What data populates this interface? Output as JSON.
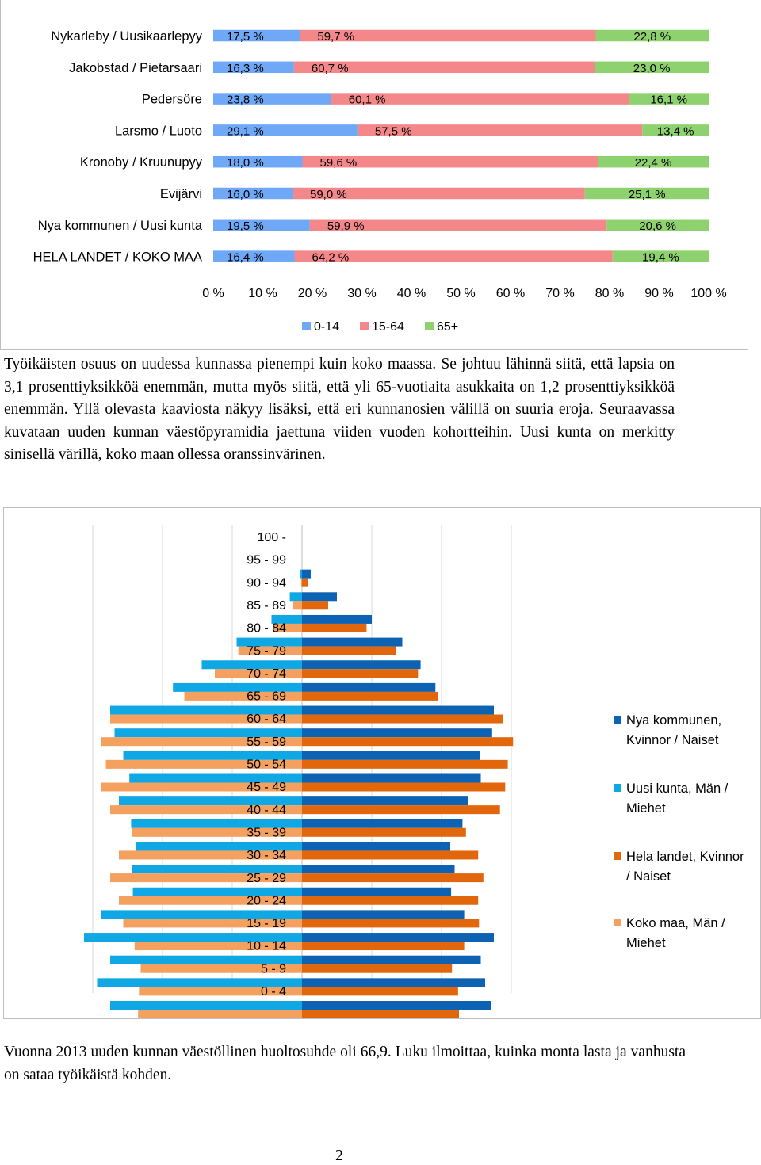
{
  "chart_data": [
    {
      "type": "bar",
      "orientation": "horizontal",
      "stacked": "percent",
      "categories": [
        "Nykarleby / Uusikaarlepyy",
        "Jakobstad / Pietarsaari",
        "Pedersöre",
        "Larsmo / Luoto",
        "Kronoby / Kruunupyy",
        "Evijärvi",
        "Nya kommunen / Uusi kunta",
        "HELA LANDET / KOKO MAA"
      ],
      "series": [
        {
          "name": "0-14",
          "color": "#6fa8f6",
          "values": [
            17.5,
            16.3,
            23.8,
            29.1,
            18.0,
            16.0,
            19.5,
            16.4
          ],
          "labels": [
            "17,5 %",
            "16,3 %",
            "23,8 %",
            "29,1 %",
            "18,0 %",
            "16,0 %",
            "19,5 %",
            "16,4 %"
          ]
        },
        {
          "name": "15-64",
          "color": "#f4878a",
          "values": [
            59.7,
            60.7,
            60.1,
            57.5,
            59.6,
            59.0,
            59.9,
            64.2
          ],
          "labels": [
            "59,7 %",
            "60,7 %",
            "60,1 %",
            "57,5 %",
            "59,6 %",
            "59,0 %",
            "59,9 %",
            "64,2 %"
          ]
        },
        {
          "name": "65+",
          "color": "#8ed16f",
          "values": [
            22.8,
            23.0,
            16.1,
            13.4,
            22.4,
            25.1,
            20.6,
            19.4
          ],
          "labels": [
            "22,8 %",
            "23,0 %",
            "16,1 %",
            "13,4 %",
            "22,4 %",
            "25,1 %",
            "20,6 %",
            "19,4 %"
          ]
        }
      ],
      "xticks": [
        "0 %",
        "10 %",
        "20 %",
        "30 %",
        "40 %",
        "50 %",
        "60 %",
        "70 %",
        "80 %",
        "90 %",
        "100 %"
      ],
      "xlim": [
        0,
        100
      ],
      "legend": "bottom",
      "grid": false
    },
    {
      "type": "bar",
      "orientation": "horizontal",
      "subtype": "population-pyramid",
      "categories": [
        "100 -",
        "95 - 99",
        "90 - 94",
        "85 - 89",
        "80 - 84",
        "75 - 79",
        "70 - 74",
        "65 - 69",
        "60 - 64",
        "55 - 59",
        "50 - 54",
        "45 - 49",
        "40 - 44",
        "35 - 39",
        "30 - 34",
        "25 - 29",
        "20 - 24",
        "15 - 19",
        "10 - 14",
        "5 - 9",
        "0 - 4"
      ],
      "series": [
        {
          "name": "Nya kommunen, Kvinnor / Naiset",
          "color": "#0d62b3",
          "side": "right",
          "values": [
            0.0,
            0.1,
            0.4,
            0.8,
            1.15,
            1.36,
            1.53,
            2.2,
            2.18,
            2.04,
            2.05,
            1.9,
            1.84,
            1.7,
            1.75,
            1.71,
            1.86,
            2.2,
            2.05,
            2.1,
            2.17
          ]
        },
        {
          "name": "Uusi kunta, Män / Miehet",
          "color": "#10a8e4",
          "side": "left",
          "values": [
            0.0,
            0.02,
            0.14,
            0.35,
            0.75,
            1.15,
            1.48,
            2.2,
            2.15,
            2.05,
            1.98,
            2.1,
            1.96,
            1.9,
            1.95,
            1.94,
            2.3,
            2.5,
            2.2,
            2.35,
            2.2
          ]
        },
        {
          "name": "Hela landet, Kvinnor / Naiset",
          "color": "#e2670c",
          "side": "right",
          "values": [
            0.0,
            0.07,
            0.3,
            0.74,
            1.08,
            1.33,
            1.56,
            2.3,
            2.42,
            2.36,
            2.33,
            2.27,
            1.88,
            2.02,
            2.08,
            2.02,
            2.03,
            1.86,
            1.72,
            1.79,
            1.8
          ]
        },
        {
          "name": "Koko maa, Män / Miehet",
          "color": "#f4a05e",
          "side": "left",
          "values": [
            0.0,
            0.01,
            0.1,
            0.33,
            0.73,
            1.0,
            1.35,
            2.2,
            2.3,
            2.25,
            2.3,
            2.2,
            1.95,
            2.1,
            2.2,
            2.1,
            2.05,
            1.92,
            1.85,
            1.87,
            1.88
          ]
        }
      ],
      "xlim": [
        -2.8,
        2.8
      ],
      "legend": "right",
      "grid": true
    }
  ],
  "text": {
    "para1": "Työikäisten osuus on uudessa kunnassa pienempi kuin koko maassa. Se johtuu lähinnä siitä, että lapsia on 3,1 prosenttiyksikköä enemmän, mutta myös siitä, että yli 65-vuotiaita asukkaita on 1,2 prosenttiyksikköä enemmän. Yllä olevasta kaaviosta näkyy lisäksi, että eri kunnanosien välillä on suuria eroja. Seuraavassa kuvataan uuden kunnan väestöpyramidia jaettuna viiden vuoden kohortteihin. Uusi kunta on merkitty sinisellä värillä, koko maan ollessa oranssinvärinen.",
    "para2": "Vuonna 2013 uuden kunnan väestöllinen huoltosuhde oli 66,9. Luku ilmoittaa, kuinka monta lasta ja vanhusta on sataa työikäistä kohden.",
    "page_number": "2"
  }
}
